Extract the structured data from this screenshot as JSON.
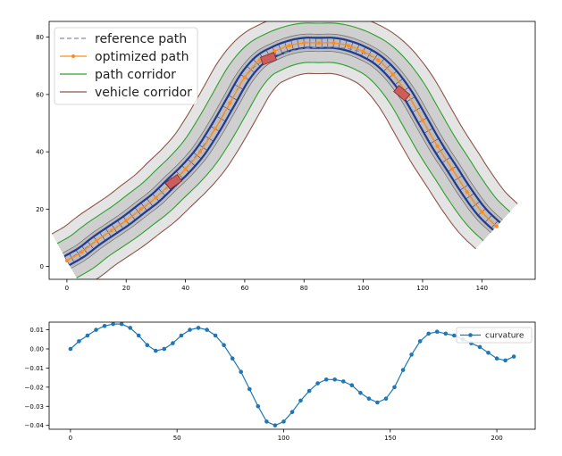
{
  "chart_data": [
    {
      "type": "line",
      "xlim": [
        -6,
        158
      ],
      "ylim": [
        -4.5,
        85.5
      ],
      "xticks": [
        0,
        20,
        40,
        60,
        80,
        100,
        120,
        140
      ],
      "yticks": [
        0,
        20,
        40,
        60,
        80
      ],
      "grid": false,
      "legend_position": "top-left",
      "series": [
        {
          "name": "reference path",
          "style": "dashed",
          "color": "#7f8fa6",
          "x": [
            0,
            10,
            20,
            30,
            40,
            50,
            55,
            60,
            65,
            70,
            75,
            80,
            85,
            90,
            95,
            100,
            105,
            110,
            115,
            120,
            125,
            130,
            135,
            140,
            145
          ],
          "y": [
            2,
            9,
            16,
            24,
            34,
            48,
            57,
            66,
            71,
            73.5,
            75,
            76,
            76.5,
            76.5,
            76,
            74.5,
            72,
            67,
            60,
            51,
            42,
            34,
            26,
            19,
            14
          ]
        },
        {
          "name": "optimized path",
          "style": "solid-markers",
          "color": "#ff8c1a",
          "x": [
            0,
            5,
            10,
            15,
            20,
            25,
            30,
            35,
            40,
            45,
            50,
            55,
            60,
            65,
            70,
            75,
            80,
            85,
            90,
            95,
            100,
            105,
            110,
            115,
            120,
            125,
            130,
            135,
            140,
            145
          ],
          "y": [
            2,
            5,
            9,
            12.5,
            16,
            20,
            24,
            29,
            34,
            40,
            48,
            57,
            66,
            72,
            75,
            77,
            78,
            78,
            78,
            77,
            75,
            72,
            67,
            60,
            51,
            42,
            34,
            26,
            19,
            14
          ]
        },
        {
          "name": "path corridor",
          "color": "#2ca02c"
        },
        {
          "name": "vehicle corridor",
          "color": "#8c564b"
        }
      ],
      "obstacles": [
        {
          "x": 36,
          "y": 29.5,
          "angle": -35
        },
        {
          "x": 68,
          "y": 72.5,
          "angle": -20
        },
        {
          "x": 113,
          "y": 60.5,
          "angle": 40
        }
      ]
    },
    {
      "type": "line",
      "xlim": [
        -10,
        218
      ],
      "ylim": [
        -0.042,
        0.014
      ],
      "xticks": [
        0,
        50,
        100,
        150,
        200
      ],
      "yticks": [
        0.01,
        0.0,
        -0.01,
        -0.02,
        -0.03,
        -0.04
      ],
      "ytick_labels": [
        "0.01",
        "0.00",
        "−0.01",
        "−0.02",
        "−0.03",
        "−0.04"
      ],
      "grid": false,
      "legend_position": "top-right",
      "series": [
        {
          "name": "curvature",
          "color": "#1f77b4",
          "x": [
            0,
            4,
            8,
            12,
            16,
            20,
            24,
            28,
            32,
            36,
            40,
            44,
            48,
            52,
            56,
            60,
            64,
            68,
            72,
            76,
            80,
            84,
            88,
            92,
            96,
            100,
            104,
            108,
            112,
            116,
            120,
            124,
            128,
            132,
            136,
            140,
            144,
            148,
            152,
            156,
            160,
            164,
            168,
            172,
            176,
            180,
            184,
            188,
            192,
            196,
            200,
            204,
            208
          ],
          "y": [
            0.0,
            0.004,
            0.007,
            0.01,
            0.012,
            0.013,
            0.013,
            0.011,
            0.007,
            0.002,
            -0.001,
            0.0,
            0.003,
            0.007,
            0.01,
            0.011,
            0.01,
            0.007,
            0.002,
            -0.005,
            -0.012,
            -0.021,
            -0.03,
            -0.038,
            -0.04,
            -0.038,
            -0.033,
            -0.027,
            -0.022,
            -0.018,
            -0.016,
            -0.016,
            -0.017,
            -0.019,
            -0.023,
            -0.026,
            -0.028,
            -0.026,
            -0.02,
            -0.011,
            -0.003,
            0.004,
            0.008,
            0.009,
            0.008,
            0.007,
            0.005,
            0.003,
            0.001,
            -0.002,
            -0.005,
            -0.006,
            -0.004
          ]
        }
      ]
    }
  ]
}
